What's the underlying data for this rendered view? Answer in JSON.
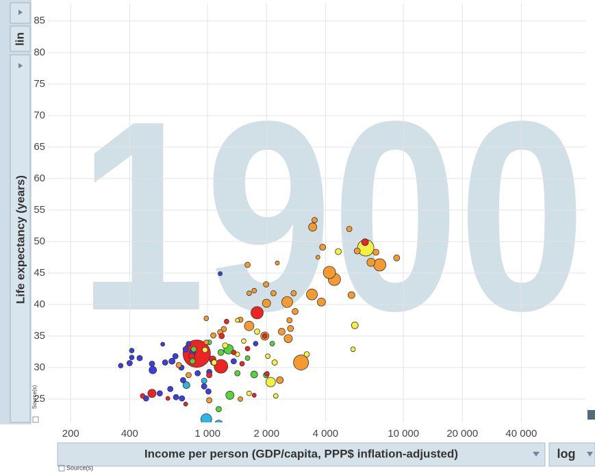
{
  "controls": {
    "y_scale": "lin",
    "x_scale": "log",
    "source_label": "Source(s)"
  },
  "chart_data": {
    "type": "scatter",
    "annotation": "1900",
    "x_label": "Income per person (GDP/capita, PPP$ inflation-adjusted)",
    "y_label": "Life expectancy (years)",
    "x_log": true,
    "grid": true,
    "xlim": [
      153,
      85000
    ],
    "ylim": [
      21.3,
      87.8
    ],
    "xticks": [
      200,
      400,
      {
        "value": 1000,
        "label": "1 000"
      },
      {
        "value": 2000,
        "label": "2 000"
      },
      {
        "value": 4000,
        "label": "4 000"
      },
      {
        "value": 10000,
        "label": "10 000"
      },
      {
        "value": 20000,
        "label": "20 000"
      },
      {
        "value": 40000,
        "label": "40 000"
      }
    ],
    "yticks": [
      25,
      30,
      35,
      40,
      45,
      50,
      55,
      60,
      65,
      70,
      75,
      80,
      85
    ],
    "series": [
      {
        "color": "#3b3fe0",
        "x": [
          360,
          400,
          410,
          450,
          410,
          525,
          520,
          607,
          658,
          685,
          735,
          750,
          773,
          800,
          838,
          645,
          690,
          740,
          960,
          1010,
          1070,
          590,
          485,
          1360,
          1760,
          1160,
          1020,
          890,
          570
        ],
        "values": [
          30.3,
          30.7,
          31.6,
          31.5,
          32.7,
          29.6,
          30.6,
          30.8,
          31.0,
          31.8,
          30.0,
          28.0,
          32.9,
          33.8,
          32.4,
          26.6,
          25.3,
          25.1,
          27.0,
          26.2,
          30.8,
          33.7,
          25.1,
          31.0,
          33.8,
          44.9,
          29.3,
          29.1,
          25.9
        ],
        "sizes": [
          12,
          16,
          12,
          16,
          12,
          30,
          16,
          16,
          20,
          16,
          16,
          16,
          16,
          12,
          20,
          16,
          16,
          16,
          16,
          16,
          16,
          9,
          16,
          16,
          12,
          9,
          16,
          16,
          16
        ]
      },
      {
        "color": "#2db6e2",
        "x": [
          985,
          1140,
          780,
          960
        ],
        "values": [
          21.8,
          21.0,
          27.2,
          27.9
        ],
        "sizes": [
          64,
          36,
          25,
          16
        ]
      },
      {
        "color": "#55d43c",
        "x": [
          1300,
          1280,
          1730,
          1170,
          1420,
          850,
          838,
          1020,
          1990,
          1140,
          1600,
          2140
        ],
        "values": [
          25.6,
          32.9,
          28.9,
          32.4,
          29.1,
          32.9,
          31.0,
          34.0,
          28.8,
          23.4,
          31.5,
          33.8
        ],
        "sizes": [
          36,
          49,
          25,
          20,
          16,
          16,
          16,
          12,
          16,
          16,
          12,
          12
        ]
      },
      {
        "color": "#f2f040",
        "x": [
          6420,
          5650,
          5530,
          4650,
          2100,
          2200,
          3210,
          1790,
          1230,
          1080,
          1420,
          1630,
          2230,
          1420,
          970,
          1530,
          2030
        ],
        "values": [
          49.0,
          36.7,
          32.9,
          48.4,
          27.7,
          30.8,
          32.1,
          35.7,
          33.5,
          30.8,
          32.1,
          25.9,
          25.5,
          37.5,
          32.8,
          34.2,
          31.8
        ],
        "sizes": [
          144,
          25,
          12,
          20,
          49,
          16,
          16,
          16,
          16,
          16,
          12,
          12,
          12,
          9,
          16,
          12,
          12
        ]
      },
      {
        "color": "#f59a30",
        "x": [
          3000,
          7570,
          4440,
          4190,
          3410,
          2550,
          3810,
          5430,
          6830,
          7240,
          5810,
          9240,
          5290,
          3440,
          3520,
          3870,
          3660,
          1600,
          2270,
          1990,
          2000,
          2170,
          2750,
          1630,
          1960,
          2390,
          2650,
          2800,
          2620,
          2580,
          1210,
          1070,
          985,
          1470,
          985,
          713,
          800,
          1020,
          1470,
          2340,
          1730,
          1160,
          1630
        ],
        "values": [
          30.8,
          46.3,
          44.0,
          45.1,
          41.6,
          40.4,
          40.4,
          41.5,
          46.7,
          48.3,
          48.5,
          47.4,
          52.0,
          52.3,
          53.4,
          49.1,
          47.5,
          46.3,
          46.6,
          43.2,
          40.2,
          41.8,
          41.8,
          36.6,
          35.0,
          35.7,
          36.2,
          38.9,
          37.5,
          34.6,
          36.1,
          35.1,
          34.0,
          37.6,
          37.8,
          30.4,
          28.8,
          24.8,
          25.0,
          28.0,
          42.2,
          35.6,
          41.8
        ],
        "sizes": [
          121,
          81,
          81,
          81,
          64,
          64,
          36,
          25,
          36,
          20,
          20,
          20,
          16,
          36,
          16,
          20,
          9,
          16,
          9,
          16,
          36,
          16,
          16,
          49,
          36,
          25,
          20,
          20,
          16,
          36,
          16,
          16,
          12,
          16,
          12,
          16,
          16,
          16,
          12,
          25,
          12,
          16,
          12
        ]
      },
      {
        "color": "#ec2424",
        "x": [
          880,
          1170,
          1790,
          6370,
          520,
          1020,
          1060,
          830,
          1600,
          1730,
          2010,
          1960,
          1180,
          1250,
          1360,
          773,
          466,
          627,
          1500
        ],
        "values": [
          32.2,
          30.2,
          38.7,
          49.9,
          25.9,
          28.8,
          31.3,
          31.8,
          33.0,
          25.6,
          29.0,
          35.0,
          35.0,
          37.3,
          32.4,
          24.2,
          25.5,
          25.1,
          30.6
        ],
        "sizes": [
          400,
          100,
          81,
          25,
          36,
          16,
          25,
          20,
          12,
          9,
          12,
          12,
          16,
          12,
          12,
          9,
          12,
          9,
          12
        ]
      }
    ]
  }
}
